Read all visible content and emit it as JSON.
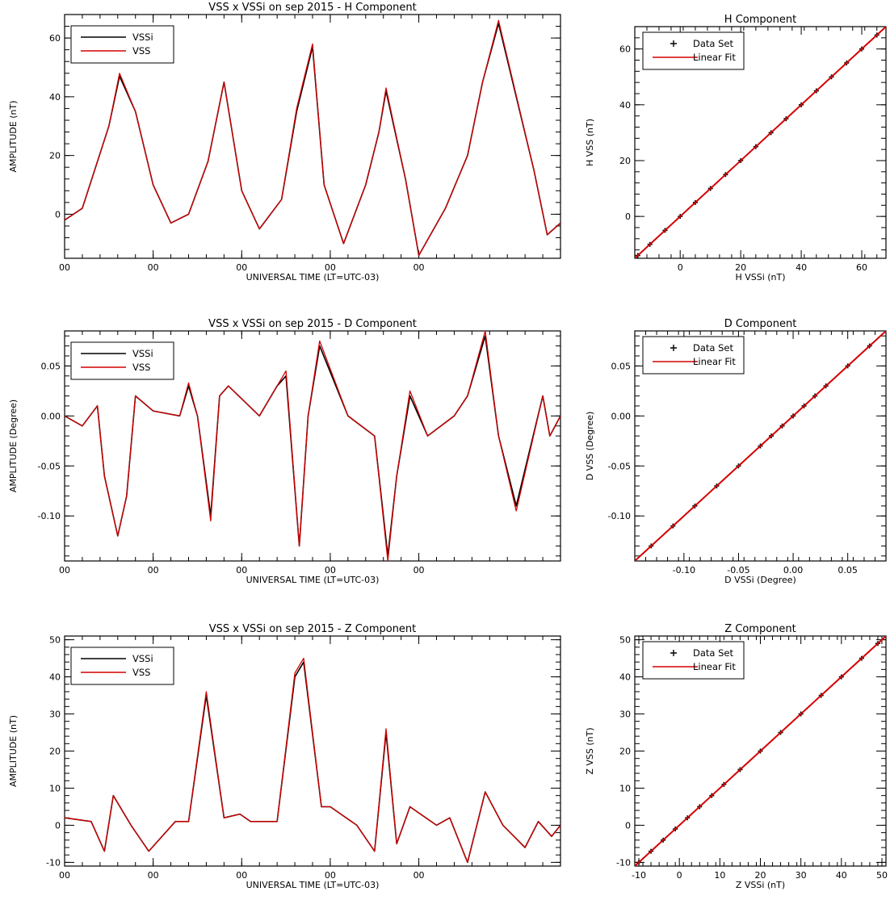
{
  "colors": {
    "vss": "#d40000",
    "vssi": "#000000",
    "data_set": "#000000",
    "linear_fit": "#d40000"
  },
  "chart_data": [
    {
      "type": "line",
      "title": "VSS x VSSi on sep 2015 - H Component",
      "xlabel": "UNIVERSAL TIME (LT=UTC-03)",
      "ylabel": "AMPLITUDE (nT)",
      "xlim": [
        0,
        5.6
      ],
      "ylim": [
        -15,
        68
      ],
      "x_ticks": [
        0,
        1,
        2,
        3,
        4
      ],
      "x_tick_labels": [
        "00",
        "00",
        "00",
        "00",
        "00"
      ],
      "y_ticks": [
        0,
        20,
        40,
        60
      ],
      "y_tick_labels": [
        "0",
        "20",
        "40",
        "60"
      ],
      "legend": "top-left",
      "series": [
        {
          "name": "VSSi",
          "color": "#000000",
          "x": [
            0,
            0.2,
            0.5,
            0.62,
            0.8,
            1.0,
            1.2,
            1.4,
            1.62,
            1.8,
            2.0,
            2.2,
            2.45,
            2.62,
            2.8,
            2.93,
            3.15,
            3.4,
            3.55,
            3.63,
            3.85,
            4.0,
            4.3,
            4.55,
            4.72,
            4.9,
            5.3,
            5.45,
            5.6
          ],
          "values": [
            -2,
            2,
            30,
            47,
            35,
            10,
            -3,
            0,
            18,
            45,
            8,
            -5,
            5,
            35,
            57,
            10,
            -10,
            10,
            28,
            42,
            12,
            -14,
            2,
            20,
            45,
            65,
            15,
            -7,
            -3
          ]
        },
        {
          "name": "VSS",
          "color": "#d40000",
          "x": [
            0,
            0.2,
            0.5,
            0.62,
            0.8,
            1.0,
            1.2,
            1.4,
            1.62,
            1.8,
            2.0,
            2.2,
            2.45,
            2.62,
            2.8,
            2.93,
            3.15,
            3.4,
            3.55,
            3.63,
            3.85,
            4.0,
            4.3,
            4.55,
            4.72,
            4.9,
            5.3,
            5.45,
            5.6
          ],
          "values": [
            -2,
            2,
            30,
            48,
            35,
            10,
            -3,
            0,
            18,
            45,
            8,
            -5,
            5,
            36,
            58,
            10,
            -10,
            10,
            28,
            43,
            12,
            -14,
            2,
            20,
            45,
            66,
            15,
            -7,
            -3
          ]
        }
      ]
    },
    {
      "type": "scatter",
      "title": "H Component",
      "xlabel": "H VSSi (nT)",
      "ylabel": "H VSS (nT)",
      "xlim": [
        -15,
        68
      ],
      "ylim": [
        -15,
        68
      ],
      "x_ticks": [
        0,
        20,
        40,
        60
      ],
      "x_tick_labels": [
        "0",
        "20",
        "40",
        "60"
      ],
      "y_ticks": [
        0,
        20,
        40,
        60
      ],
      "y_tick_labels": [
        "0",
        "20",
        "40",
        "60"
      ],
      "legend": "top-left",
      "series": [
        {
          "name": "Data Set",
          "color": "#000000",
          "x": [
            -14,
            -10,
            -5,
            0,
            5,
            10,
            15,
            20,
            25,
            30,
            35,
            40,
            45,
            50,
            55,
            60,
            65
          ],
          "values": [
            -14,
            -10,
            -5,
            0,
            5,
            10,
            15,
            20,
            25,
            30,
            35,
            40,
            45,
            50,
            55,
            60,
            65
          ]
        },
        {
          "name": "Linear Fit",
          "color": "#d40000",
          "x": [
            -15,
            68
          ],
          "values": [
            -15,
            68
          ]
        }
      ]
    },
    {
      "type": "line",
      "title": "VSS x VSSi on sep 2015 - D Component",
      "xlabel": "UNIVERSAL TIME (LT=UTC-03)",
      "ylabel": "AMPLITUDE (Degree)",
      "xlim": [
        0,
        5.6
      ],
      "ylim": [
        -0.145,
        0.085
      ],
      "x_ticks": [
        0,
        1,
        2,
        3,
        4
      ],
      "x_tick_labels": [
        "00",
        "00",
        "00",
        "00",
        "00"
      ],
      "y_ticks": [
        -0.1,
        -0.05,
        0,
        0.05
      ],
      "y_tick_labels": [
        "-0.10",
        "-0.05",
        "0.00",
        "0.05"
      ],
      "legend": "top-left",
      "series": [
        {
          "name": "VSSi",
          "color": "#000000",
          "x": [
            0,
            0.2,
            0.37,
            0.45,
            0.6,
            0.7,
            0.8,
            1.0,
            1.3,
            1.4,
            1.5,
            1.65,
            1.75,
            1.85,
            2.2,
            2.4,
            2.5,
            2.65,
            2.75,
            2.88,
            3.2,
            3.5,
            3.65,
            3.75,
            3.9,
            4.1,
            4.4,
            4.55,
            4.75,
            4.9,
            5.1,
            5.4,
            5.48,
            5.6
          ],
          "values": [
            0,
            -0.01,
            0.01,
            -0.06,
            -0.12,
            -0.08,
            0.02,
            0.005,
            0.0,
            0.03,
            0.0,
            -0.1,
            0.02,
            0.03,
            0.0,
            0.03,
            0.04,
            -0.13,
            0.0,
            0.07,
            0.0,
            -0.02,
            -0.14,
            -0.06,
            0.02,
            -0.02,
            0.0,
            0.02,
            0.08,
            -0.02,
            -0.09,
            0.02,
            -0.02,
            0.0
          ]
        },
        {
          "name": "VSS",
          "color": "#d40000",
          "x": [
            0,
            0.2,
            0.37,
            0.45,
            0.6,
            0.7,
            0.8,
            1.0,
            1.3,
            1.4,
            1.5,
            1.65,
            1.75,
            1.85,
            2.2,
            2.4,
            2.5,
            2.65,
            2.75,
            2.88,
            3.2,
            3.5,
            3.65,
            3.75,
            3.9,
            4.1,
            4.4,
            4.55,
            4.75,
            4.9,
            5.1,
            5.4,
            5.48,
            5.6
          ],
          "values": [
            0,
            -0.01,
            0.01,
            -0.06,
            -0.12,
            -0.08,
            0.02,
            0.005,
            0.0,
            0.033,
            0.0,
            -0.105,
            0.02,
            0.03,
            0.0,
            0.03,
            0.045,
            -0.13,
            0.0,
            0.075,
            0.0,
            -0.02,
            -0.145,
            -0.06,
            0.025,
            -0.02,
            0.0,
            0.02,
            0.085,
            -0.02,
            -0.095,
            0.02,
            -0.02,
            0.0
          ]
        }
      ]
    },
    {
      "type": "scatter",
      "title": "D Component",
      "xlabel": "D VSSi (Degree)",
      "ylabel": "D VSS (Degree)",
      "xlim": [
        -0.145,
        0.085
      ],
      "ylim": [
        -0.145,
        0.085
      ],
      "x_ticks": [
        -0.1,
        -0.05,
        0,
        0.05
      ],
      "x_tick_labels": [
        "-0.10",
        "-0.05",
        "0.00",
        "0.05"
      ],
      "y_ticks": [
        -0.1,
        -0.05,
        0,
        0.05
      ],
      "y_tick_labels": [
        "-0.10",
        "-0.05",
        "0.00",
        "0.05"
      ],
      "legend": "top-left",
      "series": [
        {
          "name": "Data Set",
          "color": "#000000",
          "x": [
            -0.13,
            -0.11,
            -0.09,
            -0.07,
            -0.05,
            -0.03,
            -0.02,
            -0.01,
            0.0,
            0.01,
            0.02,
            0.03,
            0.05,
            0.07
          ],
          "values": [
            -0.13,
            -0.11,
            -0.09,
            -0.07,
            -0.05,
            -0.03,
            -0.02,
            -0.01,
            0.0,
            0.01,
            0.02,
            0.03,
            0.05,
            0.07
          ]
        },
        {
          "name": "Linear Fit",
          "color": "#d40000",
          "x": [
            -0.145,
            0.085
          ],
          "values": [
            -0.145,
            0.085
          ]
        }
      ]
    },
    {
      "type": "line",
      "title": "VSS x VSSi on sep 2015 - Z Component",
      "xlabel": "UNIVERSAL TIME (LT=UTC-03)",
      "ylabel": "AMPLITUDE (nT)",
      "xlim": [
        0,
        5.6
      ],
      "ylim": [
        -11,
        51
      ],
      "x_ticks": [
        0,
        1,
        2,
        3,
        4
      ],
      "x_tick_labels": [
        "00",
        "00",
        "00",
        "00",
        "00"
      ],
      "y_ticks": [
        -10,
        0,
        10,
        20,
        30,
        40,
        50
      ],
      "y_tick_labels": [
        "-10",
        "0",
        "10",
        "20",
        "30",
        "40",
        "50"
      ],
      "legend": "top-left",
      "series": [
        {
          "name": "VSSi",
          "color": "#000000",
          "x": [
            0,
            0.3,
            0.45,
            0.55,
            0.75,
            0.95,
            1.25,
            1.4,
            1.6,
            1.8,
            1.98,
            2.1,
            2.4,
            2.6,
            2.7,
            2.9,
            3.0,
            3.3,
            3.5,
            3.63,
            3.75,
            3.9,
            4.2,
            4.35,
            4.55,
            4.75,
            4.95,
            5.2,
            5.35,
            5.5,
            5.6
          ],
          "values": [
            2,
            1,
            -7,
            8,
            0,
            -7,
            1,
            1,
            35,
            2,
            3,
            1,
            1,
            40,
            44,
            5,
            5,
            0,
            -7,
            25,
            -5,
            5,
            0,
            2,
            -10,
            9,
            0,
            -6,
            1,
            -3,
            0
          ]
        },
        {
          "name": "VSS",
          "color": "#d40000",
          "x": [
            0,
            0.3,
            0.45,
            0.55,
            0.75,
            0.95,
            1.25,
            1.4,
            1.6,
            1.8,
            1.98,
            2.1,
            2.4,
            2.6,
            2.7,
            2.9,
            3.0,
            3.3,
            3.5,
            3.63,
            3.75,
            3.9,
            4.2,
            4.35,
            4.55,
            4.75,
            4.95,
            5.2,
            5.35,
            5.5,
            5.6
          ],
          "values": [
            2,
            1,
            -7,
            8,
            0,
            -7,
            1,
            1,
            36,
            2,
            3,
            1,
            1,
            41,
            45,
            5,
            5,
            0,
            -7,
            26,
            -5,
            5,
            0,
            2,
            -10,
            9,
            0,
            -6,
            1,
            -3,
            0
          ]
        }
      ]
    },
    {
      "type": "scatter",
      "title": "Z Component",
      "xlabel": "Z VSSi (nT)",
      "ylabel": "Z VSS (nT)",
      "xlim": [
        -11,
        51
      ],
      "ylim": [
        -11,
        51
      ],
      "x_ticks": [
        -10,
        0,
        10,
        20,
        30,
        40,
        50
      ],
      "x_tick_labels": [
        "-10",
        "0",
        "10",
        "20",
        "30",
        "40",
        "50"
      ],
      "y_ticks": [
        -10,
        0,
        10,
        20,
        30,
        40,
        50
      ],
      "y_tick_labels": [
        "-10",
        "0",
        "10",
        "20",
        "30",
        "40",
        "50"
      ],
      "legend": "top-left",
      "series": [
        {
          "name": "Data Set",
          "color": "#000000",
          "x": [
            -10,
            -7,
            -4,
            -1,
            2,
            5,
            8,
            11,
            15,
            20,
            25,
            30,
            35,
            40,
            45,
            49
          ],
          "values": [
            -10,
            -7,
            -4,
            -1,
            2,
            5,
            8,
            11,
            15,
            20,
            25,
            30,
            35,
            40,
            45,
            49
          ]
        },
        {
          "name": "Linear Fit",
          "color": "#d40000",
          "x": [
            -11,
            51
          ],
          "values": [
            -11,
            51
          ]
        }
      ]
    }
  ]
}
